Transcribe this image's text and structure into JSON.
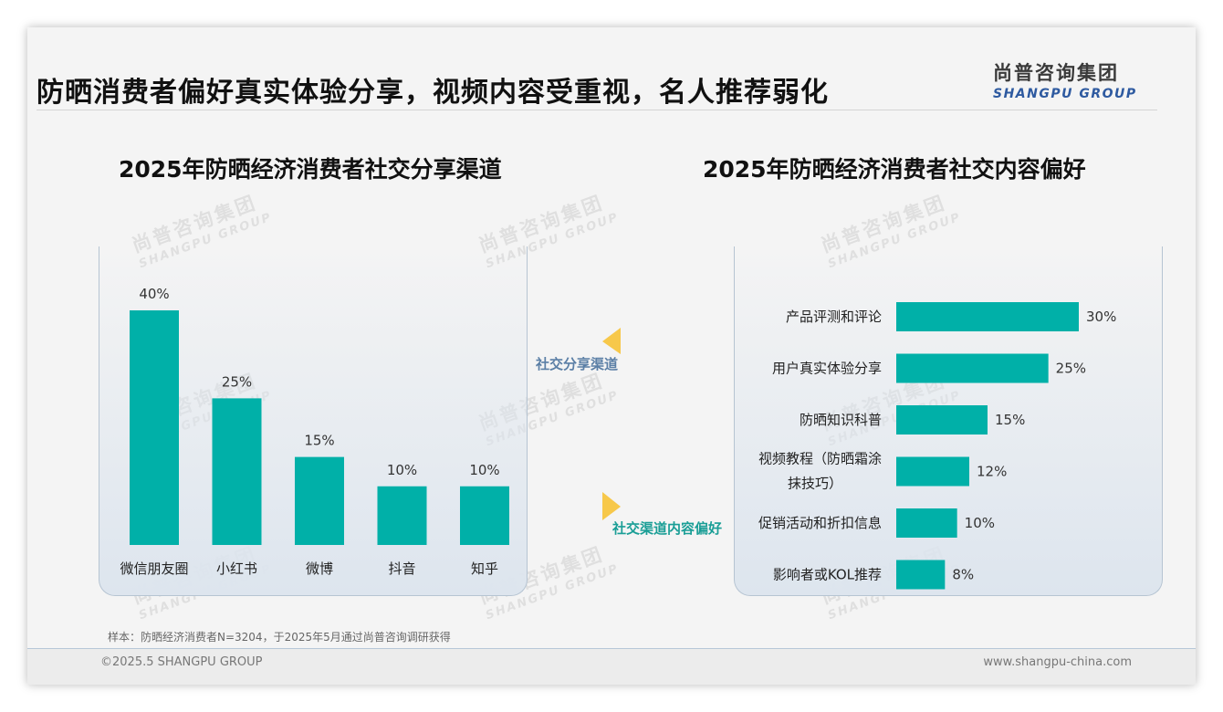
{
  "header": {
    "title": "防晒消费者偏好真实体验分享，视频内容受重视，名人推荐弱化",
    "logo_cn": "尚普咨询集团",
    "logo_en": "SHANGPU GROUP"
  },
  "watermark": {
    "cn": "尚普咨询集团",
    "en": "SHANGPU GROUP"
  },
  "connector": {
    "top_label": "社交分享渠道",
    "bottom_label": "社交渠道内容偏好",
    "top_color": "#5b7fa6",
    "bottom_color": "#1a9e96",
    "arrow_color": "#f7c84a"
  },
  "chart_data": [
    {
      "type": "bar",
      "title": "2025年防晒经济消费者社交分享渠道",
      "orientation": "vertical",
      "categories": [
        "微信朋友圈",
        "小红书",
        "微博",
        "抖音",
        "知乎"
      ],
      "values": [
        40,
        25,
        15,
        10,
        10
      ],
      "value_labels": [
        "40%",
        "25%",
        "15%",
        "10%",
        "10%"
      ],
      "unit": "%",
      "ylim": [
        0,
        40
      ],
      "grid": false,
      "legend": "none",
      "bar_color": "#00b0a8"
    },
    {
      "type": "bar",
      "title": "2025年防晒经济消费者社交内容偏好",
      "orientation": "horizontal",
      "categories": [
        "产品评测和评论",
        "用户真实体验分享",
        "防晒知识科普",
        "视频教程（防晒霜涂抹技巧）",
        "促销活动和折扣信息",
        "影响者或KOL推荐"
      ],
      "category_lines": [
        [
          "产品评测和评论"
        ],
        [
          "用户真实体验分享"
        ],
        [
          "防晒知识科普"
        ],
        [
          "视频教程（防晒霜涂",
          "抹技巧）"
        ],
        [
          "促销活动和折扣信息"
        ],
        [
          "影响者或KOL推荐"
        ]
      ],
      "values": [
        30,
        25,
        15,
        12,
        10,
        8
      ],
      "value_labels": [
        "30%",
        "25%",
        "15%",
        "12%",
        "10%",
        "8%"
      ],
      "unit": "%",
      "xlim": [
        0,
        30
      ],
      "grid": false,
      "legend": "none",
      "bar_color": "#00b0a8"
    }
  ],
  "footer": {
    "sample_note": "样本：防晒经济消费者N=3204，于2025年5月通过尚普咨询调研获得",
    "copyright": "©2025.5 SHANGPU GROUP",
    "website": "www.shangpu-china.com"
  }
}
